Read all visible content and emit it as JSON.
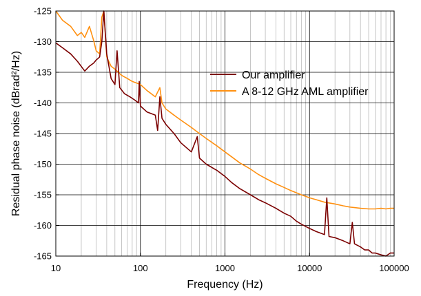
{
  "chart_data": {
    "type": "line",
    "title": "",
    "xlabel": "Frequency (Hz)",
    "ylabel": "Residual phase noise (dBrad²/Hz)",
    "xscale": "log",
    "xlim": [
      10,
      100000
    ],
    "ylim": [
      -165,
      -125
    ],
    "x_ticks": [
      10,
      100,
      1000,
      10000,
      100000
    ],
    "x_tick_labels": [
      "10",
      "100",
      "1000",
      "10000",
      "100000"
    ],
    "y_ticks": [
      -165,
      -160,
      -155,
      -150,
      -145,
      -140,
      -135,
      -130,
      -125
    ],
    "y_tick_labels": [
      "-165",
      "-160",
      "-155",
      "-150",
      "-145",
      "-140",
      "-135",
      "-130",
      "-125"
    ],
    "grid": true,
    "legend_position": "upper-right",
    "series": [
      {
        "name": "Our amplifier",
        "color": "#7b0000",
        "points": [
          [
            10,
            -130.2
          ],
          [
            12,
            -131.0
          ],
          [
            15,
            -132.0
          ],
          [
            18,
            -133.2
          ],
          [
            22,
            -134.8
          ],
          [
            25,
            -134.0
          ],
          [
            28,
            -133.5
          ],
          [
            30,
            -133.0
          ],
          [
            33,
            -132.5
          ],
          [
            35,
            -130.0
          ],
          [
            37,
            -124.0
          ],
          [
            40,
            -132.0
          ],
          [
            45,
            -136.0
          ],
          [
            50,
            -137.0
          ],
          [
            53,
            -131.5
          ],
          [
            57,
            -137.5
          ],
          [
            65,
            -138.5
          ],
          [
            75,
            -139.0
          ],
          [
            85,
            -139.5
          ],
          [
            95,
            -140.0
          ],
          [
            97,
            -136.5
          ],
          [
            100,
            -140.5
          ],
          [
            120,
            -141.5
          ],
          [
            150,
            -142.0
          ],
          [
            160,
            -144.5
          ],
          [
            170,
            -139.0
          ],
          [
            180,
            -142.5
          ],
          [
            200,
            -143.5
          ],
          [
            250,
            -145.0
          ],
          [
            300,
            -146.5
          ],
          [
            400,
            -148.0
          ],
          [
            470,
            -145.5
          ],
          [
            500,
            -149.0
          ],
          [
            600,
            -150.0
          ],
          [
            800,
            -151.0
          ],
          [
            1000,
            -152.0
          ],
          [
            1200,
            -153.0
          ],
          [
            1500,
            -154.0
          ],
          [
            2000,
            -155.0
          ],
          [
            2500,
            -155.8
          ],
          [
            3000,
            -156.3
          ],
          [
            4000,
            -157.2
          ],
          [
            5000,
            -158.0
          ],
          [
            6000,
            -158.5
          ],
          [
            7000,
            -159.3
          ],
          [
            8000,
            -159.8
          ],
          [
            10000,
            -160.5
          ],
          [
            12000,
            -161.0
          ],
          [
            15000,
            -161.5
          ],
          [
            16000,
            -155.5
          ],
          [
            17000,
            -161.8
          ],
          [
            20000,
            -162.0
          ],
          [
            25000,
            -162.5
          ],
          [
            30000,
            -163.0
          ],
          [
            32000,
            -159.5
          ],
          [
            34000,
            -163.0
          ],
          [
            40000,
            -163.5
          ],
          [
            45000,
            -164.0
          ],
          [
            50000,
            -164.0
          ],
          [
            55000,
            -164.5
          ],
          [
            60000,
            -164.5
          ],
          [
            70000,
            -164.8
          ],
          [
            80000,
            -165.0
          ],
          [
            90000,
            -164.5
          ],
          [
            100000,
            -164.5
          ]
        ]
      },
      {
        "name": "A 8-12 GHz AML amplifier",
        "color": "#ff9010",
        "points": [
          [
            10,
            -125.0
          ],
          [
            12,
            -126.5
          ],
          [
            15,
            -127.5
          ],
          [
            18,
            -129.0
          ],
          [
            20,
            -128.5
          ],
          [
            22,
            -129.3
          ],
          [
            25,
            -127.5
          ],
          [
            28,
            -129.8
          ],
          [
            30,
            -131.5
          ],
          [
            33,
            -132.0
          ],
          [
            35,
            -126.0
          ],
          [
            37,
            -125.0
          ],
          [
            40,
            -132.5
          ],
          [
            45,
            -134.0
          ],
          [
            50,
            -134.5
          ],
          [
            60,
            -135.5
          ],
          [
            70,
            -136.0
          ],
          [
            80,
            -136.5
          ],
          [
            100,
            -137.0
          ],
          [
            120,
            -138.0
          ],
          [
            150,
            -139.0
          ],
          [
            170,
            -137.5
          ],
          [
            180,
            -140.0
          ],
          [
            200,
            -141.0
          ],
          [
            250,
            -142.0
          ],
          [
            300,
            -142.8
          ],
          [
            400,
            -144.0
          ],
          [
            500,
            -145.0
          ],
          [
            600,
            -145.8
          ],
          [
            800,
            -147.0
          ],
          [
            1000,
            -148.0
          ],
          [
            1200,
            -148.8
          ],
          [
            1500,
            -149.8
          ],
          [
            2000,
            -150.8
          ],
          [
            2500,
            -151.7
          ],
          [
            3000,
            -152.3
          ],
          [
            4000,
            -153.2
          ],
          [
            5000,
            -153.8
          ],
          [
            6000,
            -154.3
          ],
          [
            8000,
            -155.0
          ],
          [
            10000,
            -155.5
          ],
          [
            12000,
            -155.8
          ],
          [
            15000,
            -156.2
          ],
          [
            20000,
            -156.5
          ],
          [
            25000,
            -156.8
          ],
          [
            30000,
            -157.0
          ],
          [
            40000,
            -157.2
          ],
          [
            50000,
            -157.3
          ],
          [
            60000,
            -157.3
          ],
          [
            70000,
            -157.2
          ],
          [
            80000,
            -157.3
          ],
          [
            90000,
            -157.2
          ],
          [
            100000,
            -157.2
          ]
        ]
      }
    ]
  }
}
